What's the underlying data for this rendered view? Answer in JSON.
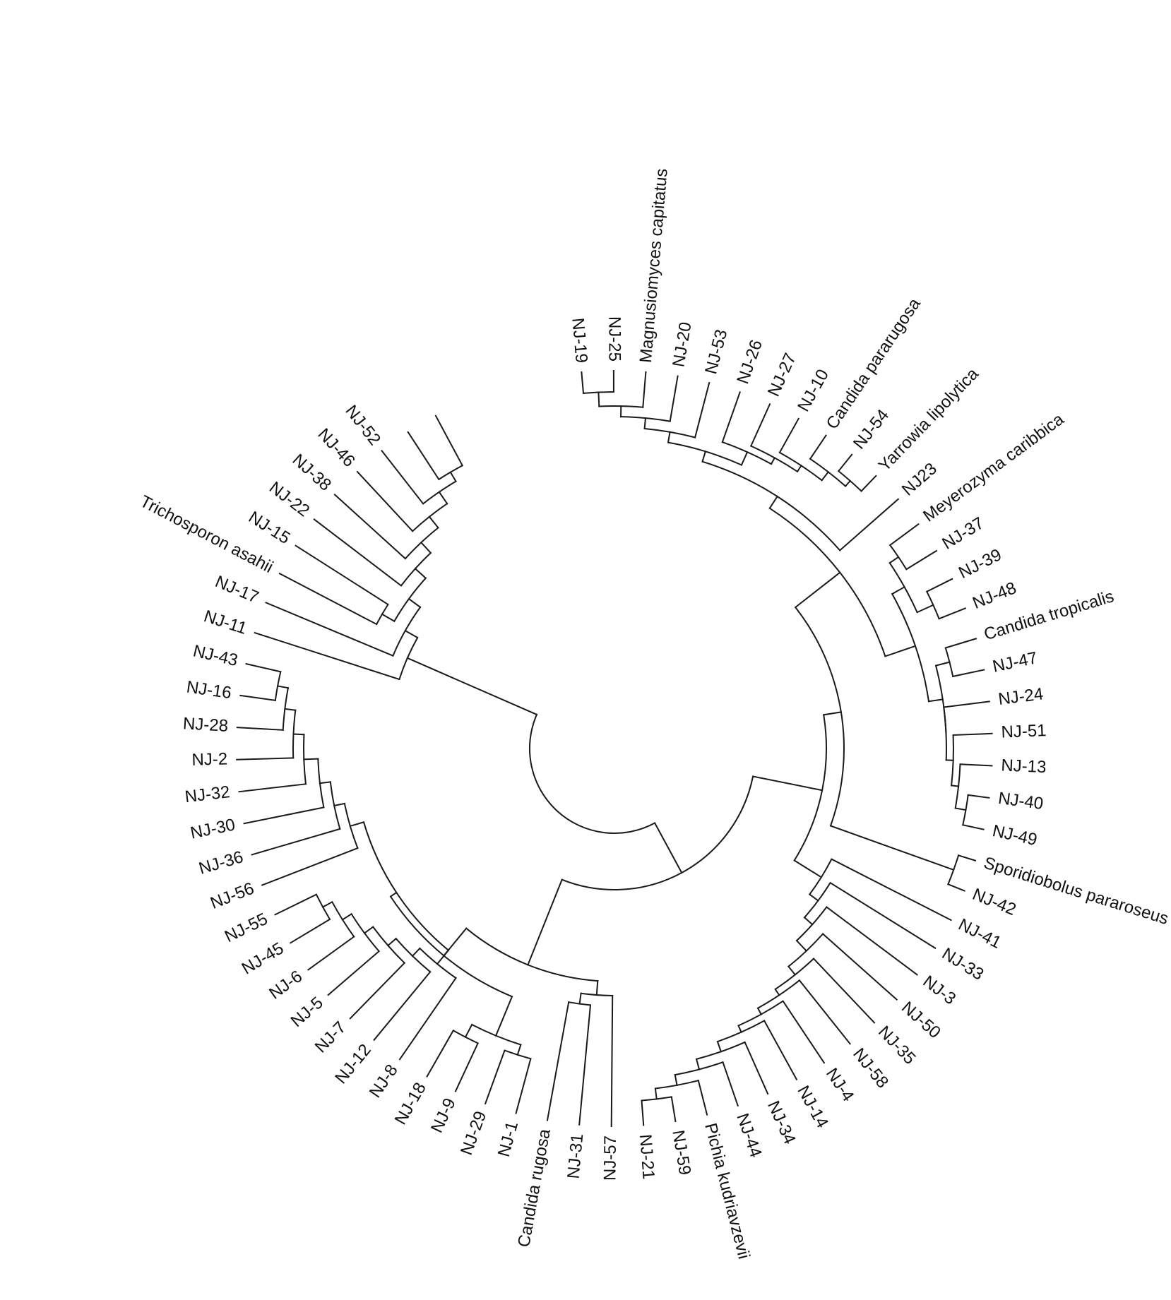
{
  "diagram": {
    "type": "circular-dendrogram",
    "line_color": "#1a1a1a",
    "text_color": "#111111",
    "leaves": [
      "NJ-19",
      "NJ-25",
      "Magnusiomyces capitatus",
      "NJ-20",
      "NJ-53",
      "NJ-26",
      "NJ-27",
      "NJ-10",
      "Candida pararugosa",
      "NJ-54",
      "Yarrowia lipolytica",
      "NJ23",
      "Meyerozyma caribbica",
      "NJ-37",
      "NJ-39",
      "NJ-48",
      "Candida tropicalis",
      "NJ-47",
      "NJ-24",
      "NJ-51",
      "NJ-13",
      "NJ-40",
      "NJ-49",
      "Sporidiobolus pararoseus",
      "NJ-42",
      "NJ-41",
      "NJ-33",
      "NJ-3",
      "NJ-50",
      "NJ-35",
      "NJ-58",
      "NJ-4",
      "NJ-14",
      "NJ-34",
      "NJ-44",
      "Pichia kudriavzevii",
      "NJ-59",
      "NJ-21",
      "NJ-57",
      "NJ-31",
      "Candida rugosa",
      "NJ-1",
      "NJ-29",
      "NJ-9",
      "NJ-18",
      "NJ-8",
      "NJ-12",
      "NJ-7",
      "NJ-5",
      "NJ-6",
      "NJ-45",
      "NJ-55",
      "NJ-56",
      "NJ-36",
      "NJ-30",
      "NJ-32",
      "NJ-2",
      "NJ-28",
      "NJ-16",
      "NJ-43",
      "NJ-11",
      "NJ-17",
      "Trichosporon asahii",
      "NJ-15",
      "NJ-22",
      "NJ-38",
      "NJ-46",
      "NJ-52"
    ]
  }
}
